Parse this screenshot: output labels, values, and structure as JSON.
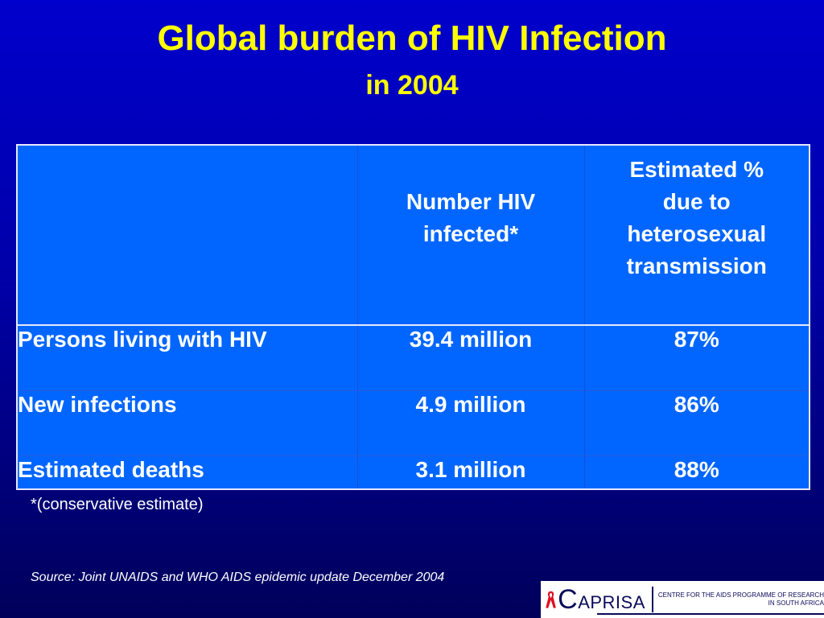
{
  "slide": {
    "title": "Global burden of HIV Infection",
    "subtitle": "in 2004"
  },
  "table": {
    "headers": [
      "",
      "Number HIV infected*",
      "Estimated % due to heterosexual transmission"
    ],
    "header_lines": {
      "col2": [
        "Number HIV",
        "infected*"
      ],
      "col3": [
        "Estimated %",
        "due to",
        "heterosexual",
        "transmission"
      ]
    },
    "rows": [
      {
        "label": "Persons living with HIV",
        "number": "39.4 million",
        "percent": "87%"
      },
      {
        "label": "New infections",
        "number": "4.9 million",
        "percent": "86%"
      },
      {
        "label": "Estimated deaths",
        "number": "3.1 million",
        "percent": "88%"
      }
    ]
  },
  "note": "*(conservative estimate)",
  "source": "Source: Joint UNAIDS and WHO AIDS epidemic update December 2004",
  "logo": {
    "name_initial": "C",
    "name_rest": "APRISA",
    "tagline_line1": "CENTRE FOR THE AIDS PROGRAMME OF RESEARCH",
    "tagline_line2": "IN SOUTH AFRICA",
    "icon": "red-ribbon-icon"
  },
  "colors": {
    "background": "#0000cc",
    "title": "#ffff00",
    "table_fill": "#0066ff",
    "text": "#ffffff"
  }
}
